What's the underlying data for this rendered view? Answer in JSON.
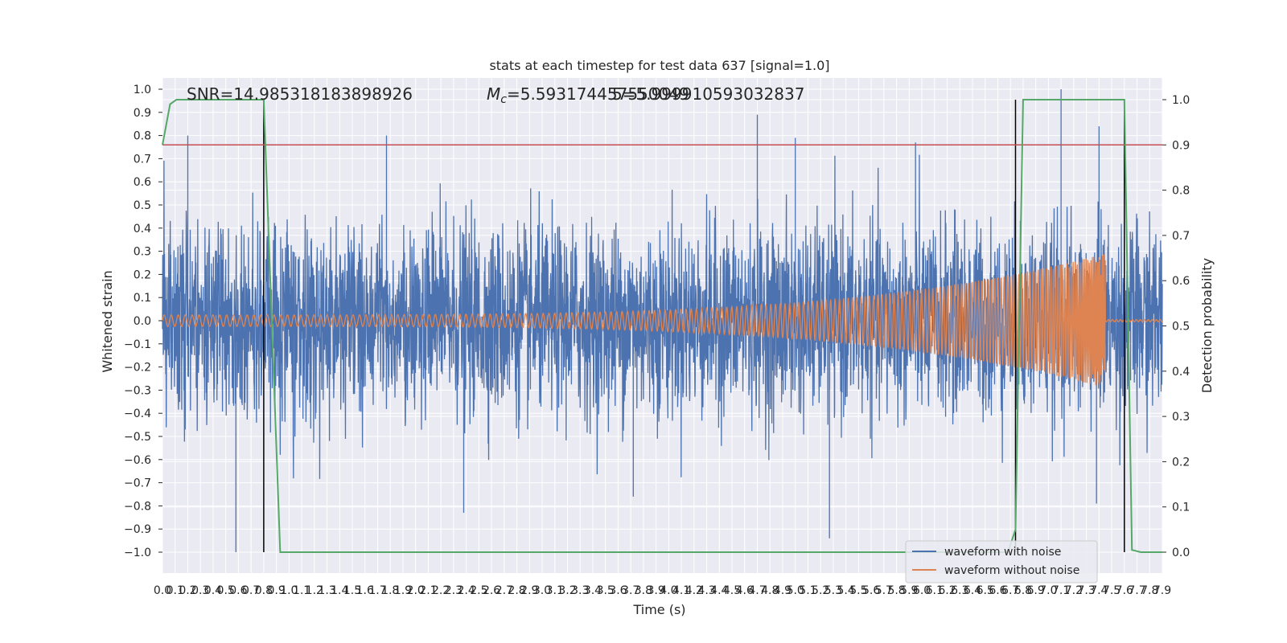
{
  "chart_data": {
    "type": "line",
    "title": "stats at each timestep for test data 637 [signal=1.0]",
    "xlabel": "Time (s)",
    "ylabel": "Whitened strain",
    "y2label": "Detection probability",
    "xlim": [
      0.0,
      7.9
    ],
    "ylim": [
      -1.0,
      1.0
    ],
    "y2lim": [
      0.0,
      1.0
    ],
    "x_ticks": [
      0.0,
      0.1,
      0.2,
      0.3,
      0.4,
      0.5,
      0.6,
      0.7,
      0.8,
      0.9,
      1.0,
      1.1,
      1.2,
      1.3,
      1.4,
      1.5,
      1.6,
      1.7,
      1.8,
      1.9,
      2.0,
      2.1,
      2.2,
      2.3,
      2.4,
      2.5,
      2.6,
      2.7,
      2.8,
      2.9,
      3.0,
      3.1,
      3.2,
      3.3,
      3.4,
      3.5,
      3.6,
      3.7,
      3.8,
      3.9,
      4.0,
      4.1,
      4.2,
      4.3,
      4.4,
      4.5,
      4.6,
      4.7,
      4.8,
      4.9,
      5.0,
      5.1,
      5.2,
      5.3,
      5.4,
      5.5,
      5.6,
      5.7,
      5.8,
      5.9,
      6.0,
      6.1,
      6.2,
      6.3,
      6.4,
      6.5,
      6.6,
      6.7,
      6.8,
      6.9,
      7.0,
      7.1,
      7.2,
      7.3,
      7.4,
      7.5,
      7.6,
      7.7,
      7.8,
      7.9
    ],
    "y_ticks": [
      -1.0,
      -0.9,
      -0.8,
      -0.7,
      -0.6,
      -0.5,
      -0.4,
      -0.3,
      -0.2,
      -0.1,
      0.0,
      0.1,
      0.2,
      0.3,
      0.4,
      0.5,
      0.6,
      0.7,
      0.8,
      0.9,
      1.0
    ],
    "y2_ticks": [
      0.0,
      0.1,
      0.2,
      0.3,
      0.4,
      0.5,
      0.6,
      0.7,
      0.8,
      0.9,
      1.0
    ],
    "annotations": {
      "snr": "SNR=14.985318183898926",
      "mc_symbol": "M",
      "mc_sub": "c",
      "mc_value": "=5.593174457550049",
      "overlap": "5=5.999910593032837"
    },
    "threshold": {
      "value": 0.9,
      "axis": "y2",
      "color": "#c44e52"
    },
    "vertical_markers_x": [
      0.8,
      6.74,
      7.6
    ],
    "series": [
      {
        "name": "waveform with noise",
        "color": "#4c72b0",
        "envelope": "noise",
        "peaks": [
          {
            "x": 0.2,
            "y": 0.8
          },
          {
            "x": 1.77,
            "y": 0.8
          },
          {
            "x": 4.7,
            "y": 0.89
          },
          {
            "x": 5.0,
            "y": 0.79
          },
          {
            "x": 5.95,
            "y": 0.77
          },
          {
            "x": 7.1,
            "y": 1.0
          },
          {
            "x": 7.4,
            "y": 0.84
          },
          {
            "x": 0.58,
            "y": -1.0
          },
          {
            "x": 2.38,
            "y": -0.83
          },
          {
            "x": 5.27,
            "y": -0.94
          },
          {
            "x": 3.72,
            "y": -0.76
          },
          {
            "x": 7.38,
            "y": -0.79
          }
        ]
      },
      {
        "name": "waveform without noise",
        "color": "#dd8452",
        "chirp": {
          "start": 0.0,
          "end": 7.45,
          "amp_start": 0.025,
          "amp_end": 0.29,
          "post_merger_amp": 0.005
        }
      },
      {
        "name": "detection probability",
        "color": "#55a868",
        "axis": "y2",
        "x": [
          0.0,
          0.06,
          0.11,
          0.2,
          0.75,
          0.8,
          0.93,
          6.68,
          6.74,
          6.8,
          7.0,
          7.6,
          7.66,
          7.73,
          7.9
        ],
        "y": [
          0.9,
          0.99,
          1.0,
          1.0,
          1.0,
          1.0,
          0.0,
          0.0,
          0.05,
          1.0,
          1.0,
          1.0,
          0.005,
          0.0,
          0.0
        ]
      }
    ],
    "legend": {
      "position": "lower-right",
      "entries": [
        {
          "label": "waveform with noise",
          "color": "#4c72b0"
        },
        {
          "label": "waveform without noise",
          "color": "#dd8452"
        }
      ]
    },
    "grid": true,
    "style": {
      "background": "#eaeaf2",
      "grid_color": "#ffffff"
    }
  }
}
